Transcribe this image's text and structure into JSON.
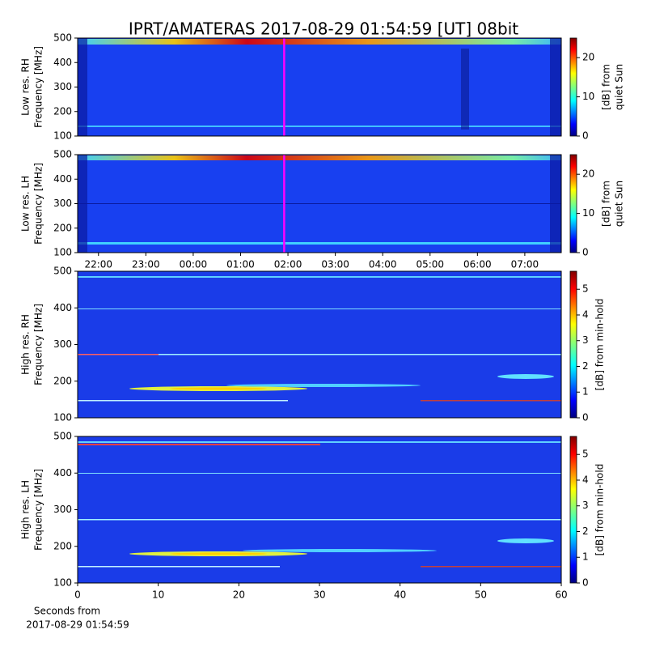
{
  "title": "IPRT/AMATERAS 2017-08-29 01:54:59 [UT]   08bit",
  "chart_data": [
    {
      "type": "heatmap",
      "ylabel": [
        "Low res. RH",
        "Frequency [MHz]"
      ],
      "ylim": [
        100,
        500
      ],
      "yticks": [
        100,
        200,
        300,
        400,
        500
      ],
      "xlim": [
        21.56,
        31.77
      ],
      "cursor": 25.92,
      "cursor_color": "#ff00ff",
      "colorbar_label": [
        "[dB] from",
        "quiet Sun"
      ],
      "clim": [
        0,
        25
      ],
      "cticks": [
        0,
        10,
        20
      ],
      "colormap": "jet"
    },
    {
      "type": "heatmap",
      "ylabel": [
        "Low res. LH",
        "Frequency [MHz]"
      ],
      "ylim": [
        100,
        500
      ],
      "yticks": [
        100,
        200,
        300,
        400,
        500
      ],
      "xlim": [
        21.56,
        31.77
      ],
      "cursor": 25.92,
      "cursor_color": "#ff00ff",
      "xticks": [
        {
          "value": 22,
          "label": "22:00"
        },
        {
          "value": 23,
          "label": "23:00"
        },
        {
          "value": 24,
          "label": "00:00"
        },
        {
          "value": 25,
          "label": "01:00"
        },
        {
          "value": 26,
          "label": "02:00"
        },
        {
          "value": 27,
          "label": "03:00"
        },
        {
          "value": 28,
          "label": "04:00"
        },
        {
          "value": 29,
          "label": "05:00"
        },
        {
          "value": 30,
          "label": "06:00"
        },
        {
          "value": 31,
          "label": "07:00"
        }
      ],
      "colorbar_label": [
        "[dB] from",
        "quiet Sun"
      ],
      "clim": [
        0,
        25
      ],
      "cticks": [
        0,
        10,
        20
      ],
      "colormap": "jet"
    },
    {
      "type": "heatmap",
      "ylabel": [
        "High res. RH",
        "Frequency [MHz]"
      ],
      "ylim": [
        100,
        500
      ],
      "yticks": [
        100,
        200,
        300,
        400,
        500
      ],
      "xlim": [
        0,
        60
      ],
      "colorbar_label": [
        "[dB] from min-hold"
      ],
      "clim": [
        0,
        5.7
      ],
      "cticks": [
        0,
        1,
        2,
        3,
        4,
        5
      ],
      "colormap": "jet"
    },
    {
      "type": "heatmap",
      "ylabel": [
        "High res. LH",
        "Frequency [MHz]"
      ],
      "ylim": [
        100,
        500
      ],
      "yticks": [
        100,
        200,
        300,
        400,
        500
      ],
      "xlim": [
        0,
        60
      ],
      "xticks": [
        0,
        10,
        20,
        30,
        40,
        50,
        60
      ],
      "xlabel": [
        "Seconds from",
        "2017-08-29 01:54:59"
      ],
      "colorbar_label": [
        "[dB] from min-hold"
      ],
      "clim": [
        0,
        5.7
      ],
      "cticks": [
        0,
        1,
        2,
        3,
        4,
        5
      ],
      "colormap": "jet"
    }
  ]
}
